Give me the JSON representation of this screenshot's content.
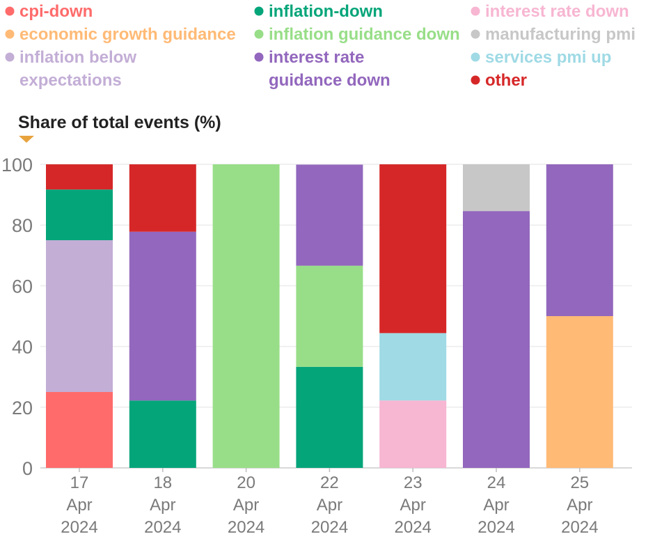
{
  "chart_data": {
    "type": "bar",
    "stacked": true,
    "ylabel": "Share of total events (%)",
    "ylim": [
      0,
      100
    ],
    "yticks": [
      0,
      20,
      40,
      60,
      80,
      100
    ],
    "grid": true,
    "legend_position": "top",
    "categories": [
      [
        "17",
        "Apr",
        "2024"
      ],
      [
        "18",
        "Apr",
        "2024"
      ],
      [
        "20",
        "Apr",
        "2024"
      ],
      [
        "22",
        "Apr",
        "2024"
      ],
      [
        "23",
        "Apr",
        "2024"
      ],
      [
        "24",
        "Apr",
        "2024"
      ],
      [
        "25",
        "Apr",
        "2024"
      ]
    ],
    "series": [
      {
        "name": "cpi-down",
        "color": "#ff6b6b",
        "values": [
          25,
          0,
          0,
          0,
          0,
          0,
          0
        ]
      },
      {
        "name": "economic growth guidance",
        "color": "#ffba76",
        "values": [
          0,
          0,
          0,
          0,
          0,
          0,
          50
        ]
      },
      {
        "name": "inflation below expectations",
        "color": "#c3aed6",
        "values": [
          50,
          0,
          0,
          0,
          0,
          0,
          0
        ]
      },
      {
        "name": "inflation-down",
        "color": "#05a57a",
        "values": [
          16.7,
          22.2,
          0,
          33.3,
          0,
          0,
          0
        ]
      },
      {
        "name": "inflation guidance down",
        "color": "#98de88",
        "values": [
          0,
          0,
          100,
          33.3,
          0,
          0,
          0
        ]
      },
      {
        "name": "interest rate guidance down",
        "color": "#9267bd",
        "values": [
          0,
          55.6,
          0,
          33.3,
          0,
          84.6,
          50
        ]
      },
      {
        "name": "interest rate down",
        "color": "#f7b6d2",
        "values": [
          0,
          0,
          0,
          0,
          22.2,
          0,
          0
        ]
      },
      {
        "name": "manufacturing pmi",
        "color": "#c7c7c7",
        "values": [
          0,
          0,
          0,
          0,
          0,
          15.4,
          0
        ]
      },
      {
        "name": "services pmi up",
        "color": "#9fdae5",
        "values": [
          0,
          0,
          0,
          0,
          22.2,
          0,
          0
        ]
      },
      {
        "name": "other",
        "color": "#d62728",
        "values": [
          8.3,
          22.2,
          0,
          0,
          55.6,
          0,
          0
        ]
      }
    ],
    "legend": [
      {
        "series": 0,
        "lines": [
          "cpi-down"
        ]
      },
      {
        "series": 3,
        "lines": [
          "inflation-down"
        ]
      },
      {
        "series": 6,
        "lines": [
          "interest rate down"
        ]
      },
      {
        "series": 1,
        "lines": [
          "economic growth guidance"
        ]
      },
      {
        "series": 4,
        "lines": [
          "inflation guidance down"
        ]
      },
      {
        "series": 7,
        "lines": [
          "manufacturing pmi"
        ]
      },
      {
        "series": 2,
        "lines": [
          "inflation below",
          "expectations"
        ]
      },
      {
        "series": 5,
        "lines": [
          "interest rate",
          "guidance down"
        ]
      },
      {
        "series": 8,
        "lines": [
          "services pmi up"
        ]
      },
      {
        "series": 9,
        "lines": [
          "other"
        ]
      }
    ],
    "marker_color": "#e8a33d",
    "axis_color": "#7a7a7a",
    "grid_color": "#ececec"
  }
}
